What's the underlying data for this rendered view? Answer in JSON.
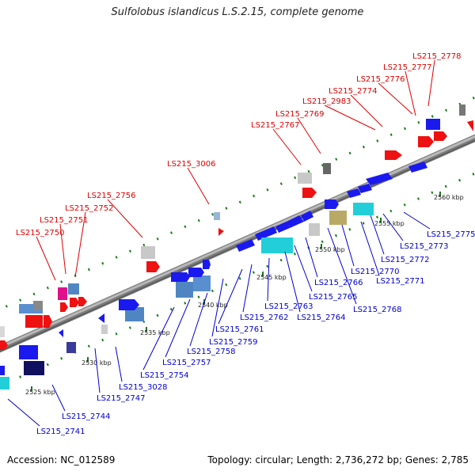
{
  "title": "Sulfolobus islandicus L.S.2.15, complete genome",
  "accession": "Accession: NC_012589",
  "topology": "Topology: circular; Length: 2,736,272 bp; Genes: 2,785",
  "colors": {
    "upper_label": "#dd0000",
    "lower_label": "#0000cc",
    "backbone": "#8a8a8a",
    "forward_gene": "#1a1aee",
    "reverse_gene": "#ee1111",
    "tick_green": "#1a7a1a"
  },
  "ticks": [
    {
      "label": "2525 kbp"
    },
    {
      "label": "2530 kbp"
    },
    {
      "label": "2535 kbp"
    },
    {
      "label": "2540 kbp"
    },
    {
      "label": "2545 kbp"
    },
    {
      "label": "2550 kbp"
    },
    {
      "label": "2555 kbp"
    },
    {
      "label": "2560 kbp"
    }
  ],
  "upper_labels": [
    {
      "text": "LS215_2778"
    },
    {
      "text": "LS215_2777"
    },
    {
      "text": "LS215_2776"
    },
    {
      "text": "LS215_2774"
    },
    {
      "text": "LS215_2983"
    },
    {
      "text": "LS215_2769"
    },
    {
      "text": "LS215_2767"
    },
    {
      "text": "LS215_3006"
    },
    {
      "text": "LS215_2756"
    },
    {
      "text": "LS215_2752"
    },
    {
      "text": "LS215_2751"
    },
    {
      "text": "LS215_2750"
    }
  ],
  "lower_labels": [
    {
      "text": "LS215_2775"
    },
    {
      "text": "LS215_2773"
    },
    {
      "text": "LS215_2772"
    },
    {
      "text": "LS215_2771"
    },
    {
      "text": "LS215_2770"
    },
    {
      "text": "LS215_2768"
    },
    {
      "text": "LS215_2766"
    },
    {
      "text": "LS215_2765"
    },
    {
      "text": "LS215_2764"
    },
    {
      "text": "LS215_2763"
    },
    {
      "text": "LS215_2762"
    },
    {
      "text": "LS215_2761"
    },
    {
      "text": "LS215_2759"
    },
    {
      "text": "LS215_2758"
    },
    {
      "text": "LS215_2757"
    },
    {
      "text": "LS215_2754"
    },
    {
      "text": "LS215_3028"
    },
    {
      "text": "LS215_2747"
    },
    {
      "text": "LS215_2744"
    },
    {
      "text": "LS215_2741"
    }
  ]
}
